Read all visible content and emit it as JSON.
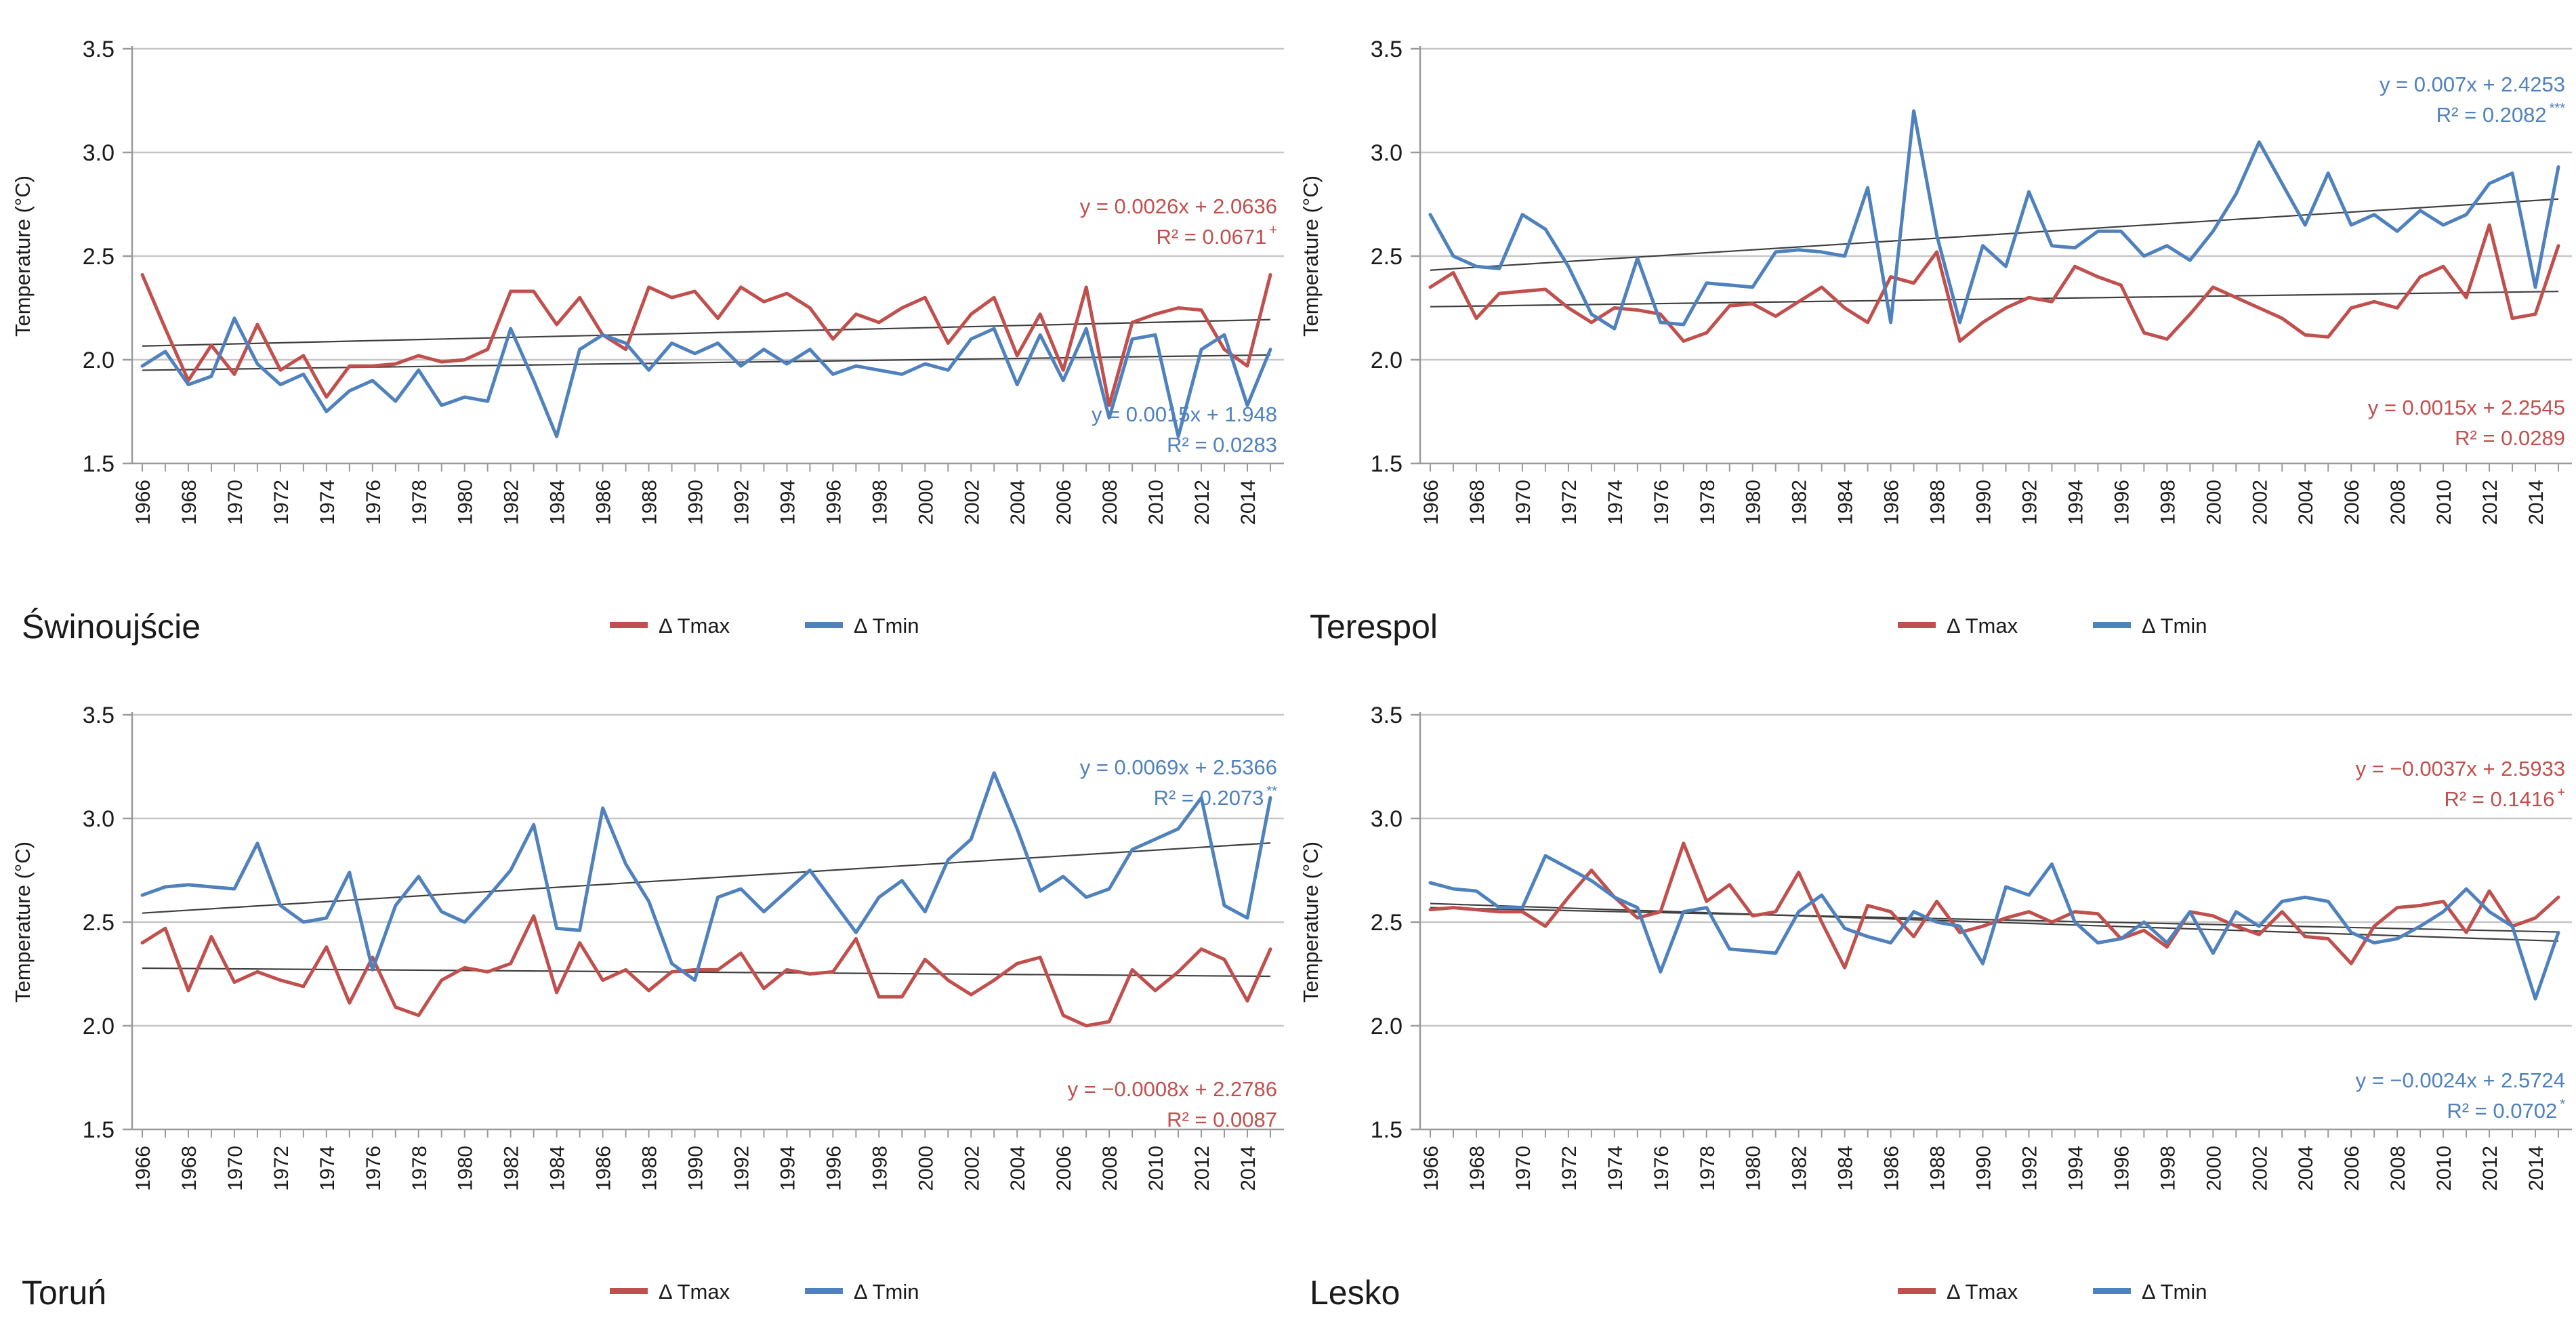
{
  "page": {
    "background": "#FFFFFF"
  },
  "axis": {
    "y_title": "Temperature (°C)",
    "y_min": 1.5,
    "y_max": 3.5,
    "y_ticks": [
      "3.5",
      "3.0",
      "2.5",
      "2.0",
      "1.5"
    ],
    "y_gridlines": [
      3.5,
      3.0,
      2.5,
      2.0
    ],
    "x_start_year": 1966,
    "x_end_year": 2015,
    "x_label_step": 2,
    "x_last_label": 2014,
    "grid": true
  },
  "legend": {
    "position": "bottom-center",
    "tmax": "Δ Tmax",
    "tmin": "Δ Tmin"
  },
  "colors": {
    "tmax": "#C0504D",
    "tmin": "#4F81BD",
    "trend": "#3f3f3f",
    "grid": "#C6C6C6",
    "axis": "#9a9a9a",
    "text": "#1a1a1a"
  },
  "chart_data": [
    {
      "type": "line",
      "title": "Świnoujście",
      "x": "years 1966–2015",
      "series": [
        {
          "name": "Δ Tmax",
          "key": "tmax",
          "values": [
            2.41,
            2.15,
            1.9,
            2.07,
            1.93,
            2.17,
            1.95,
            2.02,
            1.82,
            1.97,
            1.97,
            1.98,
            2.02,
            1.99,
            2.0,
            2.05,
            2.33,
            2.33,
            2.17,
            2.3,
            2.12,
            2.05,
            2.35,
            2.3,
            2.33,
            2.2,
            2.35,
            2.28,
            2.32,
            2.25,
            2.1,
            2.22,
            2.18,
            2.25,
            2.3,
            2.08,
            2.22,
            2.3,
            2.02,
            2.22,
            1.95,
            2.35,
            1.78,
            2.18,
            2.22,
            2.25,
            2.24,
            2.05,
            1.97,
            2.41
          ]
        },
        {
          "name": "Δ Tmin",
          "key": "tmin",
          "values": [
            1.97,
            2.04,
            1.88,
            1.92,
            2.2,
            1.98,
            1.88,
            1.93,
            1.75,
            1.85,
            1.9,
            1.8,
            1.95,
            1.78,
            1.82,
            1.8,
            2.15,
            1.9,
            1.63,
            2.05,
            2.12,
            2.08,
            1.95,
            2.08,
            2.03,
            2.08,
            1.97,
            2.05,
            1.98,
            2.05,
            1.93,
            1.97,
            1.95,
            1.93,
            1.98,
            1.95,
            2.1,
            2.15,
            1.88,
            2.12,
            1.9,
            2.15,
            1.72,
            2.1,
            2.12,
            1.63,
            2.05,
            2.12,
            1.78,
            2.05
          ]
        }
      ],
      "trends": [
        {
          "key": "tmax",
          "slope": 0.0026,
          "intercept": 2.0636
        },
        {
          "key": "tmin",
          "slope": 0.0015,
          "intercept": 1.948
        }
      ],
      "annotations": [
        {
          "key": "tmax",
          "equation": "y = 0.0026x + 2.0636",
          "r2": "R² = 0.0671",
          "sup": "+",
          "x": 1885,
          "y": 315
        },
        {
          "key": "tmin",
          "equation": "y = 0.0015x + 1.948",
          "r2": "R² = 0.0283",
          "sup": "",
          "x": 1885,
          "y": 622
        }
      ]
    },
    {
      "type": "line",
      "title": "Terespol",
      "x": "years 1966–2015",
      "series": [
        {
          "name": "Δ Tmax",
          "key": "tmax",
          "values": [
            2.35,
            2.42,
            2.2,
            2.32,
            2.33,
            2.34,
            2.25,
            2.18,
            2.25,
            2.24,
            2.22,
            2.09,
            2.13,
            2.26,
            2.27,
            2.21,
            2.28,
            2.35,
            2.25,
            2.18,
            2.4,
            2.37,
            2.52,
            2.09,
            2.18,
            2.25,
            2.3,
            2.28,
            2.45,
            2.4,
            2.36,
            2.13,
            2.1,
            2.22,
            2.35,
            2.3,
            2.25,
            2.2,
            2.12,
            2.11,
            2.25,
            2.28,
            2.25,
            2.4,
            2.45,
            2.3,
            2.65,
            2.2,
            2.22,
            2.55
          ]
        },
        {
          "name": "Δ Tmin",
          "key": "tmin",
          "values": [
            2.7,
            2.5,
            2.45,
            2.44,
            2.7,
            2.63,
            2.45,
            2.22,
            2.15,
            2.49,
            2.18,
            2.17,
            2.37,
            2.36,
            2.35,
            2.52,
            2.53,
            2.52,
            2.5,
            2.83,
            2.18,
            3.2,
            2.6,
            2.18,
            2.55,
            2.45,
            2.81,
            2.55,
            2.54,
            2.62,
            2.62,
            2.5,
            2.55,
            2.48,
            2.62,
            2.8,
            3.05,
            2.85,
            2.65,
            2.9,
            2.65,
            2.7,
            2.62,
            2.72,
            2.65,
            2.7,
            2.85,
            2.9,
            2.35,
            2.93
          ]
        }
      ],
      "trends": [
        {
          "key": "tmax",
          "slope": 0.0015,
          "intercept": 2.2545
        },
        {
          "key": "tmin",
          "slope": 0.007,
          "intercept": 2.4253
        }
      ],
      "annotations": [
        {
          "key": "tmin",
          "equation": "y = 0.007x + 2.4253",
          "r2": "R² = 0.2082",
          "sup": "***",
          "x": 1885,
          "y": 135
        },
        {
          "key": "tmax",
          "equation": "y = 0.0015x + 2.2545",
          "r2": "R² = 0.0289",
          "sup": "",
          "x": 1885,
          "y": 612
        }
      ]
    },
    {
      "type": "line",
      "title": "Toruń",
      "x": "years 1966–2015",
      "series": [
        {
          "name": "Δ Tmax",
          "key": "tmax",
          "values": [
            2.4,
            2.47,
            2.17,
            2.43,
            2.21,
            2.26,
            2.22,
            2.19,
            2.38,
            2.11,
            2.33,
            2.09,
            2.05,
            2.22,
            2.28,
            2.26,
            2.3,
            2.53,
            2.16,
            2.4,
            2.22,
            2.27,
            2.17,
            2.26,
            2.27,
            2.27,
            2.35,
            2.18,
            2.27,
            2.25,
            2.26,
            2.42,
            2.14,
            2.14,
            2.32,
            2.22,
            2.15,
            2.22,
            2.3,
            2.33,
            2.05,
            2.0,
            2.02,
            2.27,
            2.17,
            2.26,
            2.37,
            2.32,
            2.12,
            2.37
          ]
        },
        {
          "name": "Δ Tmin",
          "key": "tmin",
          "values": [
            2.63,
            2.67,
            2.68,
            2.67,
            2.66,
            2.88,
            2.58,
            2.5,
            2.52,
            2.74,
            2.27,
            2.58,
            2.72,
            2.55,
            2.5,
            2.62,
            2.75,
            2.97,
            2.47,
            2.46,
            3.05,
            2.78,
            2.6,
            2.3,
            2.22,
            2.62,
            2.66,
            2.55,
            2.65,
            2.75,
            2.6,
            2.45,
            2.62,
            2.7,
            2.55,
            2.8,
            2.9,
            3.22,
            2.95,
            2.65,
            2.72,
            2.62,
            2.66,
            2.85,
            2.9,
            2.95,
            3.1,
            2.58,
            2.52,
            3.1
          ]
        }
      ],
      "trends": [
        {
          "key": "tmax",
          "slope": -0.0008,
          "intercept": 2.2786
        },
        {
          "key": "tmin",
          "slope": 0.0069,
          "intercept": 2.5366
        }
      ],
      "annotations": [
        {
          "key": "tmin",
          "equation": "y = 0.0069x + 2.5366",
          "r2": "R² = 0.2073",
          "sup": "**",
          "x": 1885,
          "y": 160
        },
        {
          "key": "tmax",
          "equation": "y = −0.0008x + 2.2786",
          "r2": "R² = 0.0087",
          "sup": "",
          "x": 1885,
          "y": 635
        }
      ]
    },
    {
      "type": "line",
      "title": "Lesko",
      "x": "years 1966–2015",
      "series": [
        {
          "name": "Δ Tmax",
          "key": "tmax",
          "values": [
            2.56,
            2.57,
            2.56,
            2.55,
            2.55,
            2.48,
            2.62,
            2.75,
            2.62,
            2.52,
            2.55,
            2.88,
            2.6,
            2.68,
            2.53,
            2.55,
            2.74,
            2.5,
            2.28,
            2.58,
            2.55,
            2.43,
            2.6,
            2.45,
            2.48,
            2.52,
            2.55,
            2.5,
            2.55,
            2.54,
            2.42,
            2.46,
            2.38,
            2.55,
            2.53,
            2.48,
            2.44,
            2.55,
            2.43,
            2.42,
            2.3,
            2.48,
            2.57,
            2.58,
            2.6,
            2.45,
            2.65,
            2.48,
            2.52,
            2.62
          ]
        },
        {
          "name": "Δ Tmin",
          "key": "tmin",
          "values": [
            2.69,
            2.66,
            2.65,
            2.57,
            2.57,
            2.82,
            2.76,
            2.7,
            2.62,
            2.57,
            2.26,
            2.55,
            2.57,
            2.37,
            2.36,
            2.35,
            2.55,
            2.63,
            2.47,
            2.43,
            2.4,
            2.55,
            2.5,
            2.48,
            2.3,
            2.67,
            2.63,
            2.78,
            2.5,
            2.4,
            2.42,
            2.5,
            2.4,
            2.55,
            2.35,
            2.55,
            2.48,
            2.6,
            2.62,
            2.6,
            2.45,
            2.4,
            2.42,
            2.48,
            2.55,
            2.66,
            2.55,
            2.48,
            2.13,
            2.45
          ]
        }
      ],
      "trends": [
        {
          "key": "tmax",
          "slope": -0.0037,
          "intercept": 2.5933
        },
        {
          "key": "tmin",
          "slope": -0.0024,
          "intercept": 2.5724
        }
      ],
      "annotations": [
        {
          "key": "tmax",
          "equation": "y = −0.0037x + 2.5933",
          "r2": "R² = 0.1416",
          "sup": "+",
          "x": 1885,
          "y": 162
        },
        {
          "key": "tmin",
          "equation": "y = −0.0024x + 2.5724",
          "r2": "R² = 0.0702",
          "sup": "*",
          "x": 1885,
          "y": 622
        }
      ]
    }
  ]
}
